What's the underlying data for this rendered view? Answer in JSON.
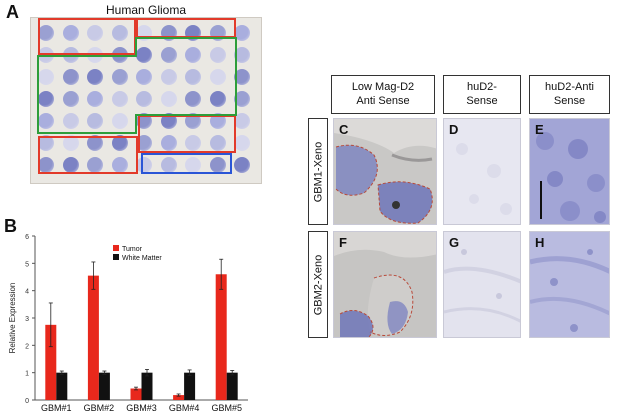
{
  "panelA": {
    "letter": "A",
    "title": "Human Glioma"
  },
  "panelB": {
    "letter": "B"
  },
  "chart_data": {
    "type": "bar",
    "categories": [
      "GBM#1",
      "GBM#2",
      "GBM#3",
      "GBM#4",
      "GBM#5"
    ],
    "series": [
      {
        "name": "Tumor",
        "color": "#e8281c",
        "values": [
          2.75,
          4.55,
          0.42,
          0.18,
          4.6
        ],
        "errors": [
          0.8,
          0.5,
          0.05,
          0.04,
          0.55
        ]
      },
      {
        "name": "White Matter",
        "color": "#111111",
        "values": [
          1.0,
          1.0,
          1.0,
          1.0,
          1.0
        ],
        "errors": [
          0.06,
          0.06,
          0.12,
          0.1,
          0.08
        ]
      }
    ],
    "ylabel": "Relative Expression",
    "ylim": [
      0,
      6
    ],
    "yticks": [
      "0",
      "1",
      "2",
      "3",
      "4",
      "5",
      "6"
    ],
    "legend_position": "top-center",
    "grid": false
  },
  "panelC_H": {
    "headers": [
      "Low Mag-D2\nAnti Sense",
      "huD2-\nSense",
      "huD2-Anti\nSense"
    ],
    "row_labels": [
      "GBM1-Xeno",
      "GBM2-Xeno"
    ],
    "letters": [
      "C",
      "D",
      "E",
      "F",
      "G",
      "H"
    ]
  },
  "colors": {
    "roi_red": "#e23a2a",
    "roi_green": "#2e9e3a",
    "roi_blue": "#2a55d6",
    "stain": "#6f6fb8",
    "tumor": "#e8281c",
    "white_matter": "#111111"
  }
}
